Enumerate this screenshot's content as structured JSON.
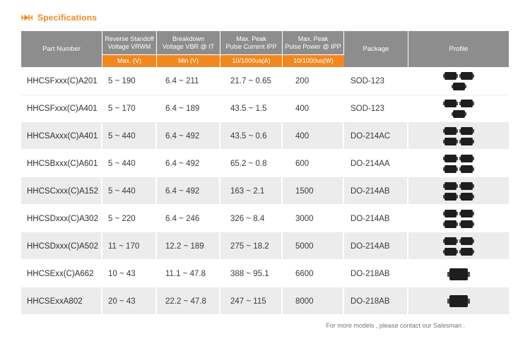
{
  "page": {
    "title": "Specifications",
    "footer_note": "For more models , please contact our Salesman ."
  },
  "colors": {
    "accent_orange": "#f0881f",
    "header_gray": "#8d8d8d",
    "row_alt_gray": "#ececec",
    "chip_black": "#1e1e1e"
  },
  "table": {
    "headers": {
      "part_number": "Part Number",
      "vrwm_line1": "Reverse Standoff",
      "vrwm_line2": "Voltage VRWM",
      "vrwm_sub": "Max. (V)",
      "vbr_line1": "Breakdown",
      "vbr_line2": "Voltage VBR @ IT",
      "vbr_sub": "Min (V)",
      "ipp_line1": "Max. Peak",
      "ipp_line2": "Pulse Current IPP",
      "ipp_sub": "10/1000us(A)",
      "ppp_line1": "Max. Peak",
      "ppp_line2": "Pulse Power @ IPP",
      "ppp_sub": "10/1000us(W)",
      "package": "Package",
      "profile": "Profile"
    },
    "rows": [
      {
        "part_number": "HHCSFxxx(C)A201",
        "vrwm": "5 ~ 190",
        "vbr": "6.4 ~ 211",
        "ipp": "21.7 ~ 0.65",
        "ppp": "200",
        "package": "SOD-123",
        "profile_chip_count": 3
      },
      {
        "part_number": "HHCSFxxx(C)A401",
        "vrwm": "5 ~ 170",
        "vbr": "6.4 ~ 189",
        "ipp": "43.5 ~ 1.5",
        "ppp": "400",
        "package": "SOD-123",
        "profile_chip_count": 3
      },
      {
        "part_number": "HHCSAxxx(C)A401",
        "vrwm": "5 ~ 440",
        "vbr": "6.4 ~ 492",
        "ipp": "43.5 ~ 0.6",
        "ppp": "400",
        "package": "DO-214AC",
        "profile_chip_count": 4
      },
      {
        "part_number": "HHCSBxxx(C)A601",
        "vrwm": "5 ~ 440",
        "vbr": "6.4 ~ 492",
        "ipp": "65.2 ~ 0.8",
        "ppp": "600",
        "package": "DO-214AA",
        "profile_chip_count": 4
      },
      {
        "part_number": "HHCSCxxx(C)A152",
        "vrwm": "5 ~ 440",
        "vbr": "6.4 ~ 492",
        "ipp": "163 ~ 2.1",
        "ppp": "1500",
        "package": "DO-214AB",
        "profile_chip_count": 4
      },
      {
        "part_number": "HHCSDxxx(C)A302",
        "vrwm": "5 ~ 220",
        "vbr": "6.4 ~ 246",
        "ipp": "326 ~ 8.4",
        "ppp": "3000",
        "package": "DO-214AB",
        "profile_chip_count": 4
      },
      {
        "part_number": "HHCSDxxx(C)A502",
        "vrwm": "11 ~ 170",
        "vbr": "12.2 ~ 189",
        "ipp": "275 ~ 18.2",
        "ppp": "5000",
        "package": "DO-214AB",
        "profile_chip_count": 4
      },
      {
        "part_number": "HHCSExx(C)A662",
        "vrwm": "10 ~ 43",
        "vbr": "11.1 ~ 47.8",
        "ipp": "388 ~ 95.1",
        "ppp": "6600",
        "package": "DO-218AB",
        "profile_chip_count": 1
      },
      {
        "part_number": "HHCSExxA802",
        "vrwm": "20 ~ 43",
        "vbr": "22.2 ~ 47.8",
        "ipp": "247 ~ 115",
        "ppp": "8000",
        "package": "DO-218AB",
        "profile_chip_count": 1
      }
    ]
  }
}
